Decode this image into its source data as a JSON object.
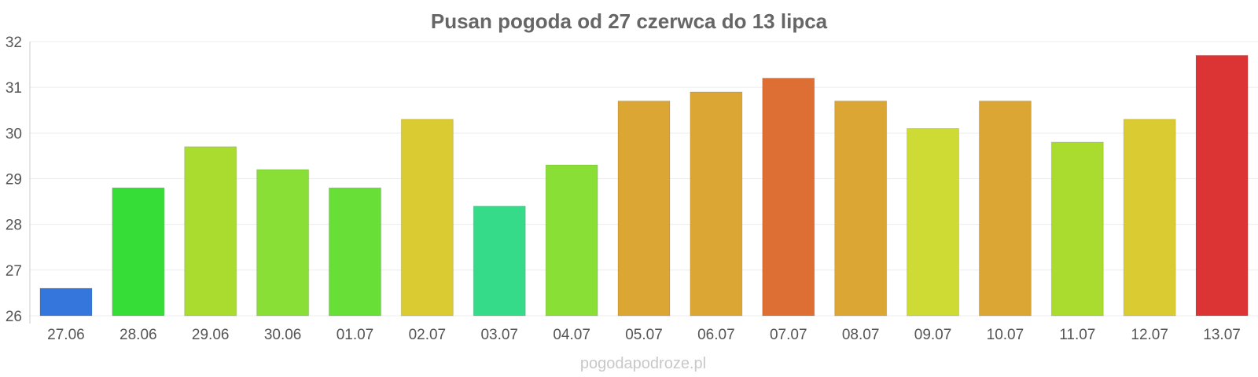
{
  "chart_data": {
    "type": "bar",
    "title": "Pusan pogoda od 27 czerwca do 13 lipca",
    "xlabel": "",
    "ylabel": "",
    "categories": [
      "27.06",
      "28.06",
      "29.06",
      "30.06",
      "01.07",
      "02.07",
      "03.07",
      "04.07",
      "05.07",
      "06.07",
      "07.07",
      "08.07",
      "09.07",
      "10.07",
      "11.07",
      "12.07",
      "13.07"
    ],
    "values": [
      26.6,
      28.8,
      29.7,
      29.2,
      28.8,
      30.3,
      28.4,
      29.3,
      30.7,
      30.9,
      31.2,
      30.7,
      30.1,
      30.7,
      29.8,
      30.3,
      31.7
    ],
    "colors": [
      "#3576dc",
      "#36dd36",
      "#a9dc2f",
      "#8adf36",
      "#67df36",
      "#dbcb32",
      "#36db8a",
      "#8adf36",
      "#dca634",
      "#dca634",
      "#dd6f34",
      "#dca634",
      "#cedb34",
      "#dca634",
      "#a9dc2f",
      "#dbcb32",
      "#dc3434"
    ],
    "ylim": [
      26,
      32
    ],
    "yticks": [
      "26",
      "27",
      "28",
      "29",
      "30",
      "31",
      "32"
    ],
    "grid": true,
    "legend": "none"
  },
  "credit": "pogodapodroze.pl"
}
